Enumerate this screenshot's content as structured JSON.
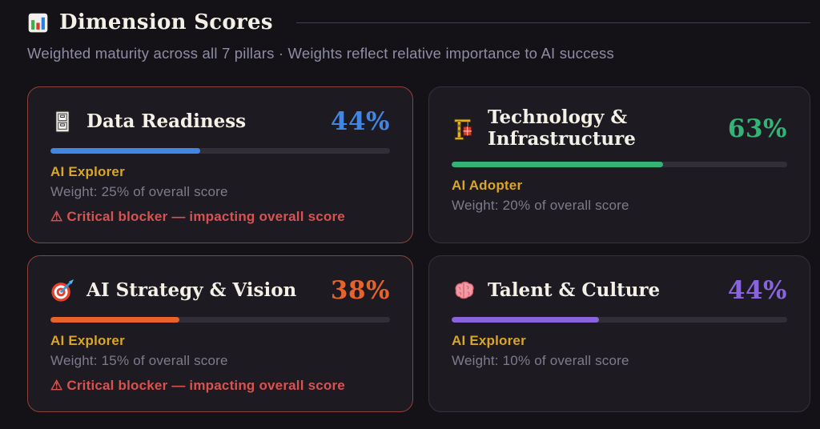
{
  "header": {
    "icon": "bar-chart-icon",
    "title": "Dimension Scores",
    "subtitle": "Weighted maturity across all 7 pillars · Weights reflect relative importance to AI success"
  },
  "cards": [
    {
      "icon": "file-cabinet-icon",
      "title": "Data Readiness",
      "score_label": "44%",
      "score_value": 44,
      "accent": "#4286e3",
      "level": "AI Explorer",
      "weight": "Weight: 25% of overall score",
      "blocker": "⚠ Critical blocker — impacting overall score",
      "critical": true
    },
    {
      "icon": "construction-crane-icon",
      "title": "Technology & Infrastructure",
      "score_label": "63%",
      "score_value": 63,
      "accent": "#34b377",
      "level": "AI Adopter",
      "weight": "Weight: 20% of overall score",
      "critical": false
    },
    {
      "icon": "target-icon",
      "title": "AI Strategy & Vision",
      "score_label": "38%",
      "score_value": 38,
      "accent": "#e8622b",
      "level": "AI Explorer",
      "weight": "Weight: 15% of overall score",
      "blocker": "⚠ Critical blocker — impacting overall score",
      "critical": true
    },
    {
      "icon": "brain-icon",
      "title": "Talent & Culture",
      "score_label": "44%",
      "score_value": 44,
      "accent": "#8a64dd",
      "level": "AI Explorer",
      "weight": "Weight: 10% of overall score",
      "critical": false
    }
  ],
  "colors": {
    "background": "#141217",
    "card_background": "#1d1b21",
    "card_border": "#34323c",
    "critical_border": "#8e423c",
    "level_gold": "#d9a625",
    "muted_text": "#7d7b8e",
    "warning_red": "#d85252",
    "heading_cream": "#f3f0e7",
    "subtitle_gray": "#8f8da4",
    "track_gray": "#312e39"
  }
}
